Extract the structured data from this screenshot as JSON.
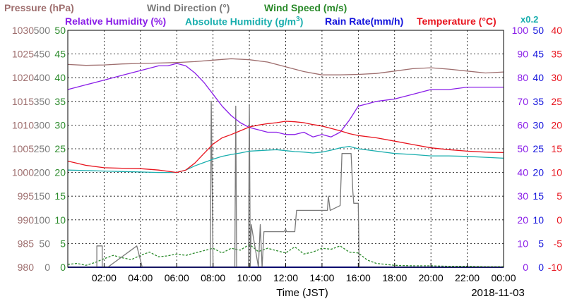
{
  "header": {
    "pressure": "Pressure (hPa)",
    "wind_direction": "Wind Direction (°)",
    "wind_speed": "Wind Speed (m/s)",
    "relative_humidity": "Relative Humidity (%)",
    "absolute_humidity": "Absolute Humidity (g/m",
    "absolute_humidity_sup": "3",
    "absolute_humidity_close": ")",
    "rain_rate": "Rain Rate(mm/h)",
    "temperature": "Temperature (°C)",
    "multiplier": "x0.2"
  },
  "footer": {
    "xlabel": "Time (JST)",
    "date": "2018-11-03"
  },
  "colors": {
    "pressure": "#9e6e6e",
    "wind_direction": "#7a7a7a",
    "wind_speed": "#2a8a2a",
    "relative_humidity": "#8a1ee8",
    "absolute_humidity": "#1aaeae",
    "rain_rate": "#1414dc",
    "temperature": "#e8141e"
  },
  "chart_data": {
    "type": "line",
    "x_unit": "hour",
    "xlim": [
      0,
      24
    ],
    "x_tick_labels": [
      "02:00",
      "04:00",
      "06:00",
      "08:00",
      "10:00",
      "12:00",
      "14:00",
      "16:00",
      "18:00",
      "20:00",
      "22:00",
      "00:00"
    ],
    "axes": {
      "pressure": {
        "ticks": [
          "980",
          "985",
          "990",
          "995",
          "1000",
          "1005",
          "1010",
          "1015",
          "1020",
          "1025",
          "1030"
        ],
        "range": [
          980,
          1030
        ]
      },
      "wind_direction": {
        "ticks": [
          "0",
          "50",
          "100",
          "150",
          "200",
          "250",
          "300",
          "350",
          "400",
          "450",
          "500"
        ],
        "range": [
          0,
          500
        ]
      },
      "wind_speed": {
        "ticks": [
          "0",
          "5",
          "10",
          "15",
          "20",
          "25",
          "30",
          "35",
          "40",
          "45",
          "50"
        ],
        "range": [
          0,
          50
        ]
      },
      "relative_humidity": {
        "ticks": [
          "0",
          "10",
          "20",
          "30",
          "40",
          "50",
          "60",
          "70",
          "80",
          "90",
          "100"
        ],
        "range": [
          0,
          100
        ]
      },
      "rain_rate": {
        "ticks": [
          "0",
          "5",
          "10",
          "15",
          "20",
          "25",
          "30",
          "35",
          "40",
          "45",
          "50"
        ],
        "range": [
          0,
          50
        ]
      },
      "temperature": {
        "ticks": [
          "-10",
          "-5",
          "0",
          "5",
          "10",
          "15",
          "20",
          "25",
          "30",
          "35",
          "40"
        ],
        "range": [
          -10,
          40
        ]
      }
    },
    "series": [
      {
        "name": "Pressure (hPa)",
        "axis": "pressure",
        "x": [
          0,
          1,
          2,
          3,
          4,
          5,
          6,
          7,
          8,
          9,
          10,
          11,
          12,
          13,
          14,
          15,
          16,
          17,
          18,
          19,
          20,
          21,
          22,
          23,
          24
        ],
        "y": [
          1022.8,
          1022.6,
          1022.7,
          1022.9,
          1023.0,
          1023.1,
          1023.2,
          1023.4,
          1023.7,
          1024.0,
          1023.8,
          1023.3,
          1022.3,
          1021.3,
          1020.6,
          1020.6,
          1020.7,
          1020.9,
          1021.4,
          1021.9,
          1022.1,
          1021.8,
          1021.4,
          1021.0,
          1021.2
        ]
      },
      {
        "name": "Relative Humidity (%)",
        "axis": "relative_humidity",
        "x": [
          0,
          1,
          2,
          3,
          4,
          5,
          5.5,
          6,
          6.5,
          7,
          7.5,
          8,
          8.5,
          9,
          9.5,
          10,
          10.5,
          11,
          11.5,
          12,
          12.5,
          13,
          13.5,
          14,
          14.5,
          15,
          15.5,
          16,
          16.5,
          17,
          18,
          19,
          20,
          21,
          22,
          23,
          24
        ],
        "y": [
          75,
          77,
          79,
          81,
          83,
          85,
          85,
          86,
          85,
          82,
          78,
          73,
          68,
          64,
          61,
          59,
          58,
          57,
          57,
          56,
          56,
          57,
          55,
          56,
          55,
          57,
          62,
          68,
          69,
          70,
          71,
          73,
          75,
          75,
          76,
          76,
          76
        ]
      },
      {
        "name": "Absolute Humidity (g/m3)",
        "axis": "rain_rate",
        "x": [
          0,
          1,
          2,
          3,
          4,
          5,
          6,
          6.5,
          7,
          7.5,
          8,
          8.5,
          9,
          9.5,
          10,
          10.5,
          11,
          11.5,
          12,
          12.5,
          13,
          13.5,
          14,
          14.5,
          15,
          15.5,
          16,
          17,
          18,
          19,
          20,
          21,
          22,
          23,
          24
        ],
        "y": [
          20.5,
          20.4,
          20.3,
          20.2,
          20.1,
          20.0,
          20.0,
          20.5,
          21.4,
          22.1,
          22.8,
          23.4,
          23.8,
          24.1,
          24.5,
          24.6,
          24.7,
          24.8,
          24.6,
          24.4,
          24.3,
          24.1,
          24.3,
          24.7,
          25.2,
          25.5,
          25.0,
          24.5,
          24.0,
          23.8,
          23.5,
          23.5,
          23.4,
          23.2,
          23.0
        ]
      },
      {
        "name": "Temperature (°C)",
        "axis": "temperature",
        "x": [
          0,
          1,
          2,
          3,
          4,
          5,
          6,
          6.5,
          7,
          7.5,
          8,
          8.5,
          9,
          9.5,
          10,
          10.5,
          11,
          11.5,
          12,
          12.5,
          13,
          13.5,
          14,
          14.5,
          15,
          15.5,
          16,
          17,
          18,
          19,
          20,
          21,
          22,
          23,
          24
        ],
        "y": [
          12.4,
          11.5,
          11.0,
          10.9,
          10.8,
          10.5,
          10.0,
          10.5,
          12.0,
          14.0,
          16.0,
          17.3,
          18.0,
          18.8,
          19.6,
          20.0,
          20.3,
          20.5,
          20.8,
          20.7,
          20.5,
          20.1,
          19.8,
          19.3,
          18.8,
          18.2,
          17.8,
          17.3,
          16.6,
          15.9,
          15.2,
          14.8,
          14.5,
          14.3,
          14.2
        ]
      },
      {
        "name": "Wind Direction (°)",
        "axis": "wind_direction",
        "x": [
          0,
          1.6,
          1.6,
          1.9,
          1.9,
          2.2,
          3.8,
          3.8,
          4.1,
          4.1,
          7.85,
          7.9,
          8.0,
          8.05,
          9.2,
          9.25,
          9.3,
          9.35,
          9.95,
          10.0,
          10.05,
          10.1,
          10.5,
          10.6,
          10.7,
          10.8,
          11.9,
          12.0,
          12.05,
          12.5,
          12.6,
          13.0,
          14.3,
          14.35,
          14.45,
          15.0,
          15.1,
          15.6,
          15.7,
          15.75,
          16.0,
          16.05,
          24
        ],
        "y": [
          0,
          0,
          45,
          45,
          0,
          0,
          45,
          45,
          0,
          0,
          0,
          350,
          0,
          0,
          0,
          340,
          0,
          0,
          0,
          340,
          0,
          90,
          0,
          90,
          0,
          75,
          75,
          80,
          75,
          75,
          120,
          120,
          120,
          150,
          120,
          130,
          240,
          240,
          160,
          135,
          135,
          0,
          0
        ]
      },
      {
        "name": "Wind Speed (m/s)",
        "axis": "wind_speed",
        "x": [
          0,
          0.5,
          1,
          1.5,
          2,
          2.5,
          3,
          3.5,
          4,
          4.5,
          5,
          5.5,
          6,
          6.5,
          7,
          7.5,
          8,
          8.5,
          9,
          9.5,
          10,
          10.5,
          11,
          11.5,
          12,
          12.5,
          13,
          13.5,
          14,
          14.5,
          15,
          15.5,
          16,
          16.5,
          17,
          18,
          19,
          20,
          21,
          22,
          23,
          24
        ],
        "y": [
          0.6,
          0.8,
          0.4,
          1.0,
          1.8,
          2.5,
          2.0,
          1.6,
          2.5,
          3.2,
          2.2,
          2.4,
          2.8,
          2.5,
          3.0,
          3.5,
          4.0,
          3.0,
          4.0,
          3.6,
          4.8,
          3.3,
          4.0,
          3.5,
          3.0,
          4.3,
          2.8,
          3.2,
          4.0,
          3.8,
          4.5,
          3.2,
          3.0,
          1.5,
          0.8,
          0.4,
          0.3,
          0.3,
          0.2,
          0.2,
          0.1,
          0.1
        ]
      },
      {
        "name": "Rain Rate(mm/h)",
        "axis": "rain_rate",
        "x": [
          0,
          24
        ],
        "y": [
          0,
          0
        ]
      }
    ]
  }
}
